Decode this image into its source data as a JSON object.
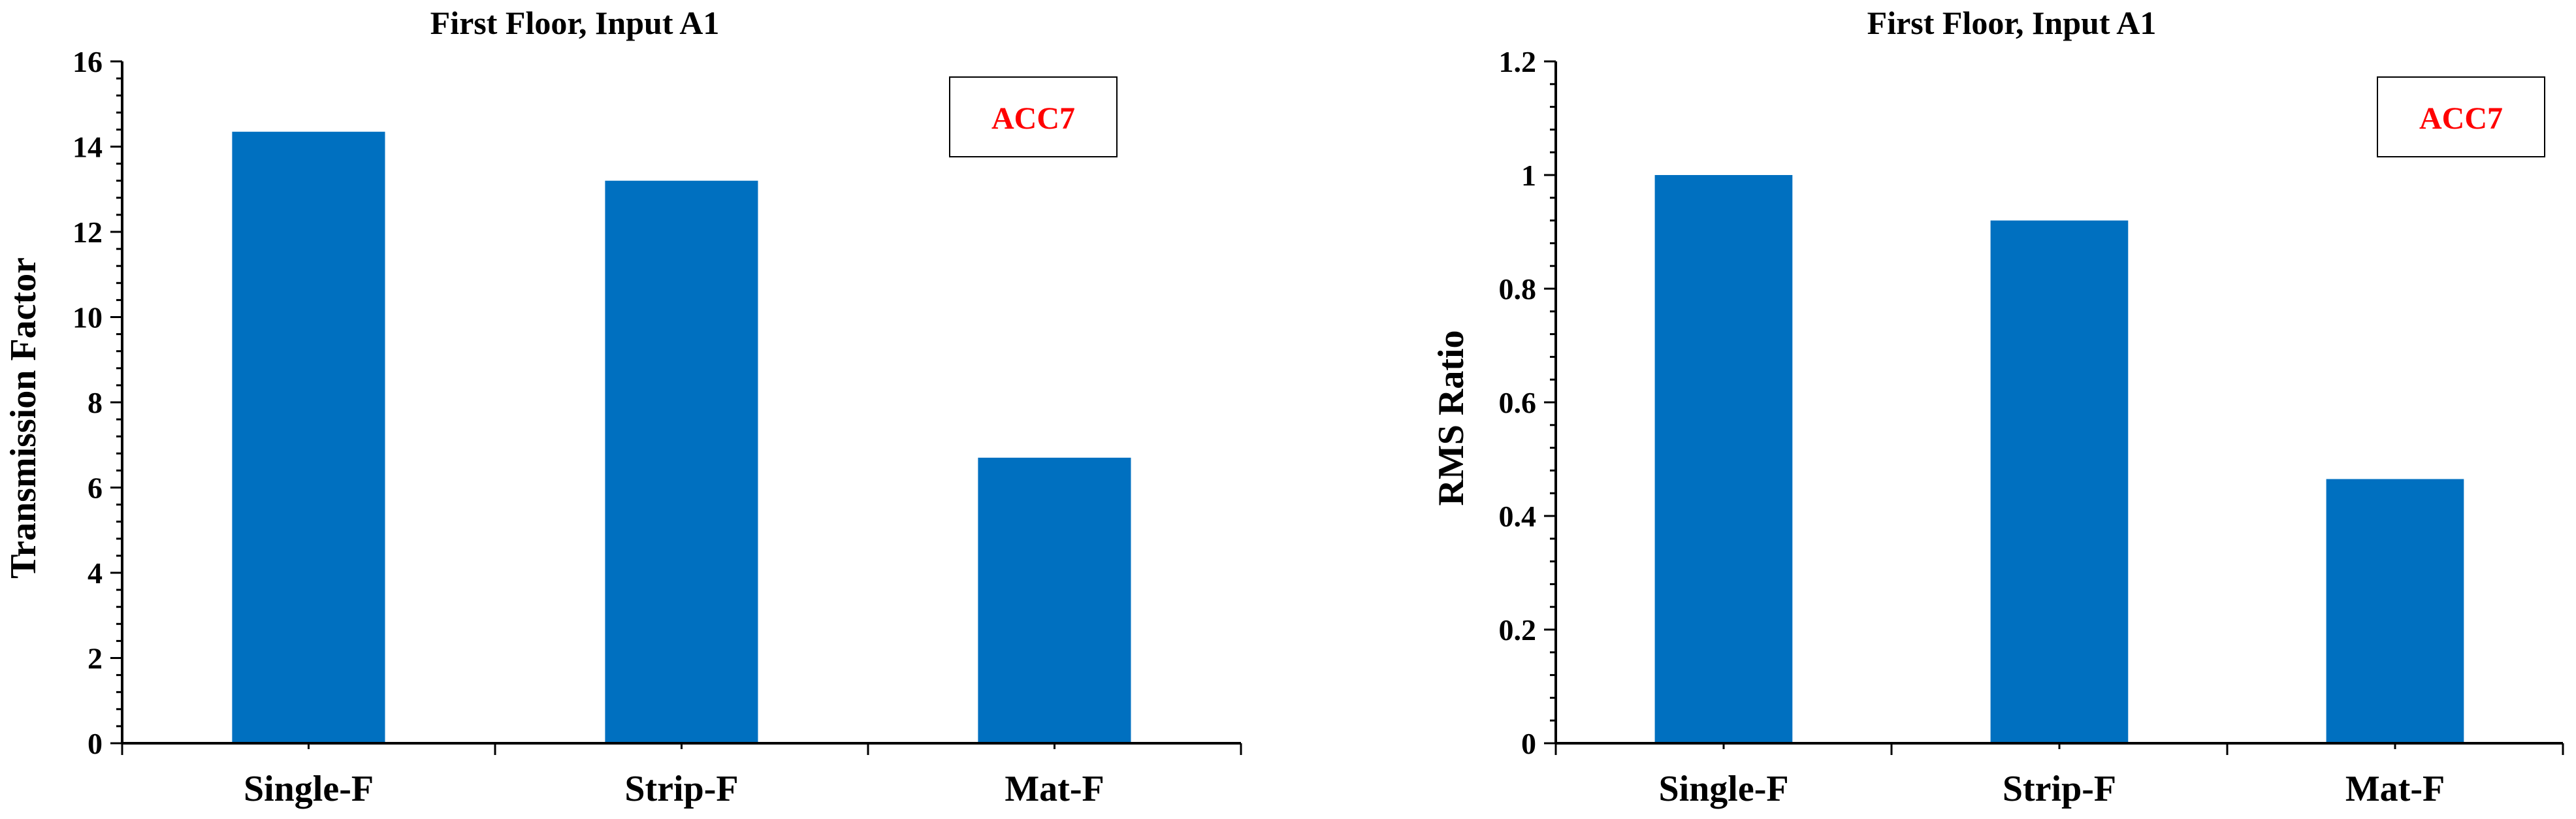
{
  "colors": {
    "bar": "#0070C0",
    "axis": "#000000",
    "legend_text": "#FF0000",
    "legend_border": "#000000"
  },
  "chart_data": [
    {
      "type": "bar",
      "title": "First Floor, Input A1",
      "xlabel": "",
      "ylabel": "Transmission Factor",
      "categories": [
        "Single-F",
        "Strip-F",
        "Mat-F"
      ],
      "values": [
        14.35,
        13.2,
        6.7
      ],
      "ylim": [
        0,
        16
      ],
      "yticks": [
        0,
        2,
        4,
        6,
        8,
        10,
        12,
        14,
        16
      ],
      "ytick_labels": [
        "0",
        "2",
        "4",
        "6",
        "8",
        "10",
        "12",
        "14",
        "16"
      ],
      "legend_text": "ACC7",
      "legend_position": "top-right"
    },
    {
      "type": "bar",
      "title": "First Floor, Input A1",
      "xlabel": "",
      "ylabel": "RMS Ratio",
      "categories": [
        "Single-F",
        "Strip-F",
        "Mat-F"
      ],
      "values": [
        1.0,
        0.92,
        0.465
      ],
      "ylim": [
        0,
        1.2
      ],
      "yticks": [
        0,
        0.2,
        0.4,
        0.6,
        0.8,
        1.0,
        1.2
      ],
      "ytick_labels": [
        "0",
        "0.2",
        "0.4",
        "0.6",
        "0.8",
        "1",
        "1.2"
      ],
      "legend_text": "ACC7",
      "legend_position": "top-right"
    }
  ]
}
